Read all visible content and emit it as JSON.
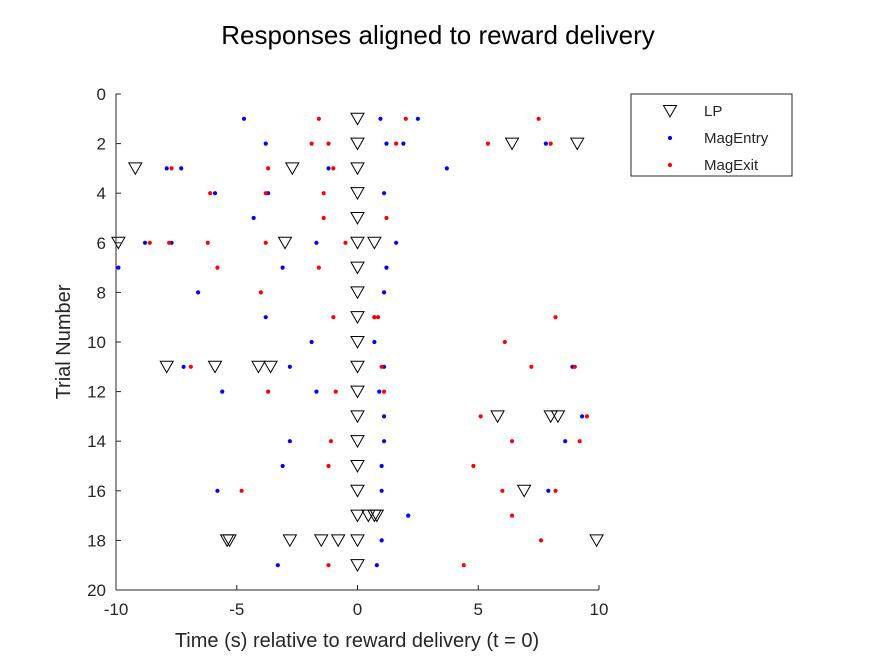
{
  "chart_data": {
    "type": "scatter",
    "title": "Responses aligned to reward delivery",
    "xlabel": "Time (s) relative to reward delivery (t = 0)",
    "ylabel": "Trial Number",
    "xlim": [
      -10,
      10
    ],
    "ylim": [
      0,
      20
    ],
    "y_reversed": true,
    "xticks": [
      -10,
      -5,
      0,
      5,
      10
    ],
    "yticks": [
      0,
      2,
      4,
      6,
      8,
      10,
      12,
      14,
      16,
      18,
      20
    ],
    "xtick_labels": [
      "-10",
      "-5",
      "0",
      "5",
      "10"
    ],
    "ytick_labels": [
      "0",
      "2",
      "4",
      "6",
      "8",
      "10",
      "12",
      "14",
      "16",
      "18",
      "20"
    ],
    "grid": false,
    "legend_position": "outside top-right",
    "series": [
      {
        "name": "LP",
        "marker": "triangle-down",
        "color": "#000000",
        "points": [
          [
            0,
            1
          ],
          [
            0,
            2
          ],
          [
            6.4,
            2
          ],
          [
            9.1,
            2
          ],
          [
            -9.2,
            3
          ],
          [
            -2.7,
            3
          ],
          [
            0,
            3
          ],
          [
            0,
            4
          ],
          [
            0,
            5
          ],
          [
            -9.9,
            6
          ],
          [
            -3,
            6
          ],
          [
            0,
            6
          ],
          [
            0.7,
            6
          ],
          [
            0,
            7
          ],
          [
            0,
            8
          ],
          [
            0,
            9
          ],
          [
            0,
            10
          ],
          [
            -7.9,
            11
          ],
          [
            -5.9,
            11
          ],
          [
            -4.1,
            11
          ],
          [
            -3.6,
            11
          ],
          [
            0,
            11
          ],
          [
            0,
            12
          ],
          [
            0,
            13
          ],
          [
            5.8,
            13
          ],
          [
            8,
            13
          ],
          [
            8.3,
            13
          ],
          [
            0,
            14
          ],
          [
            0,
            15
          ],
          [
            0,
            16
          ],
          [
            6.9,
            16
          ],
          [
            0,
            17
          ],
          [
            0.45,
            17
          ],
          [
            0.7,
            17
          ],
          [
            0.8,
            17
          ],
          [
            -5.4,
            18
          ],
          [
            -5.3,
            18
          ],
          [
            -2.8,
            18
          ],
          [
            -1.5,
            18
          ],
          [
            -0.8,
            18
          ],
          [
            0,
            18
          ],
          [
            9.9,
            18
          ],
          [
            0,
            19
          ]
        ]
      },
      {
        "name": "MagEntry",
        "marker": "point",
        "color": "#0000ff",
        "points": [
          [
            -4.7,
            1
          ],
          [
            0.95,
            1
          ],
          [
            2.5,
            1
          ],
          [
            -3.8,
            2
          ],
          [
            1.2,
            2
          ],
          [
            1.9,
            2
          ],
          [
            7.8,
            2
          ],
          [
            -7.9,
            3
          ],
          [
            -7.3,
            3
          ],
          [
            -1.2,
            3
          ],
          [
            3.7,
            3
          ],
          [
            -5.9,
            4
          ],
          [
            -3.7,
            4
          ],
          [
            1.1,
            4
          ],
          [
            -4.3,
            5
          ],
          [
            -8.8,
            6
          ],
          [
            -7.7,
            6
          ],
          [
            -1.7,
            6
          ],
          [
            1.6,
            6
          ],
          [
            -9.9,
            7
          ],
          [
            -3.1,
            7
          ],
          [
            1.2,
            7
          ],
          [
            -6.6,
            8
          ],
          [
            1.1,
            8
          ],
          [
            -3.8,
            9
          ],
          [
            0.7,
            9
          ],
          [
            -1.9,
            10
          ],
          [
            0.7,
            10
          ],
          [
            -7.2,
            11
          ],
          [
            -2.8,
            11
          ],
          [
            1.1,
            11
          ],
          [
            8.9,
            11
          ],
          [
            -5.6,
            12
          ],
          [
            -1.7,
            12
          ],
          [
            0.9,
            12
          ],
          [
            1.1,
            13
          ],
          [
            9.3,
            13
          ],
          [
            -2.8,
            14
          ],
          [
            1.1,
            14
          ],
          [
            8.6,
            14
          ],
          [
            -3.1,
            15
          ],
          [
            1,
            15
          ],
          [
            -5.8,
            16
          ],
          [
            1,
            16
          ],
          [
            7.9,
            16
          ],
          [
            2.1,
            17
          ],
          [
            1,
            18
          ],
          [
            -3.3,
            19
          ],
          [
            0.8,
            19
          ]
        ]
      },
      {
        "name": "MagExit",
        "marker": "point",
        "color": "#ff0000",
        "points": [
          [
            -1.6,
            1
          ],
          [
            2,
            1
          ],
          [
            7.5,
            1
          ],
          [
            -1.9,
            2
          ],
          [
            -1.2,
            2
          ],
          [
            1.6,
            2
          ],
          [
            5.4,
            2
          ],
          [
            8,
            2
          ],
          [
            -7.7,
            3
          ],
          [
            -3.7,
            3
          ],
          [
            -1,
            3
          ],
          [
            -6.1,
            4
          ],
          [
            -3.8,
            4
          ],
          [
            -1.4,
            4
          ],
          [
            -1.4,
            5
          ],
          [
            1.2,
            5
          ],
          [
            -8.6,
            6
          ],
          [
            -7.8,
            6
          ],
          [
            -6.2,
            6
          ],
          [
            -3.8,
            6
          ],
          [
            -0.5,
            6
          ],
          [
            -5.8,
            7
          ],
          [
            -1.6,
            7
          ],
          [
            -4,
            8
          ],
          [
            -1,
            9
          ],
          [
            0.7,
            9
          ],
          [
            0.85,
            9
          ],
          [
            8.2,
            9
          ],
          [
            6.1,
            10
          ],
          [
            -6.9,
            11
          ],
          [
            1,
            11
          ],
          [
            7.2,
            11
          ],
          [
            9,
            11
          ],
          [
            -3.7,
            12
          ],
          [
            -0.9,
            12
          ],
          [
            1.1,
            12
          ],
          [
            5.1,
            13
          ],
          [
            9.5,
            13
          ],
          [
            -1.1,
            14
          ],
          [
            6.4,
            14
          ],
          [
            9.2,
            14
          ],
          [
            -1.2,
            15
          ],
          [
            4.8,
            15
          ],
          [
            -4.8,
            16
          ],
          [
            6,
            16
          ],
          [
            8.2,
            16
          ],
          [
            6.4,
            17
          ],
          [
            7.6,
            18
          ],
          [
            -1.2,
            19
          ],
          [
            4.4,
            19
          ]
        ]
      }
    ]
  }
}
